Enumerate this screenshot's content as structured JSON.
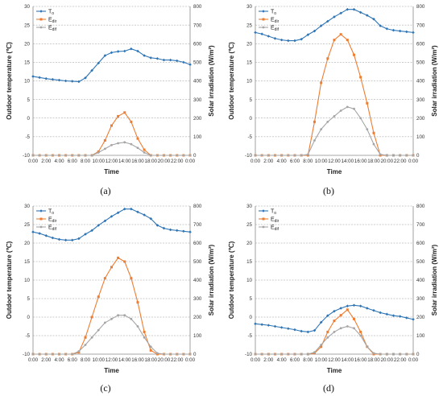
{
  "chart_data": [
    {
      "type": "line",
      "panel_label": "(a)",
      "xlabel": "Time",
      "ylabel_left": "Outdoor temperature (℃)",
      "ylabel_right": "Solar irradiation (W/m²)",
      "ylim_left": [
        -10,
        30
      ],
      "ylim_right": [
        0,
        800
      ],
      "yticks_left": [
        -10,
        -5,
        0,
        5,
        10,
        15,
        20,
        25,
        30
      ],
      "yticks_right": [
        0,
        100,
        200,
        300,
        400,
        500,
        600,
        700,
        800
      ],
      "x_tick_labels": [
        "0:00",
        "2:00",
        "4:00",
        "6:00",
        "8:00",
        "10:00",
        "12:00",
        "14:00",
        "16:00",
        "18:00",
        "20:00",
        "22:00",
        "0:00"
      ],
      "grid": "horizontal dashed",
      "legend_position": "top-left",
      "x_hours": [
        0,
        1,
        2,
        3,
        4,
        5,
        6,
        7,
        8,
        9,
        10,
        11,
        12,
        13,
        14,
        15,
        16,
        17,
        18,
        19,
        20,
        21,
        22,
        23,
        24
      ],
      "series": [
        {
          "name": "To",
          "axis": "left",
          "color": "#2E75B6",
          "marker": "diamond",
          "values": [
            11.2,
            10.9,
            10.6,
            10.4,
            10.2,
            10.0,
            9.9,
            9.8,
            10.8,
            12.8,
            14.8,
            16.8,
            17.6,
            17.9,
            18.0,
            18.6,
            18.0,
            16.8,
            16.2,
            16.0,
            15.6,
            15.6,
            15.4,
            15.0,
            14.4
          ]
        },
        {
          "name": "Edir",
          "axis": "right",
          "color": "#ED7D31",
          "marker": "square",
          "values": [
            0,
            0,
            0,
            0,
            0,
            0,
            0,
            0,
            0,
            0,
            20,
            80,
            160,
            210,
            230,
            180,
            90,
            30,
            0,
            0,
            0,
            0,
            0,
            0,
            0
          ]
        },
        {
          "name": "Edif",
          "axis": "right",
          "color": "#A5A5A5",
          "marker": "circle",
          "values": [
            0,
            0,
            0,
            0,
            0,
            0,
            0,
            0,
            0,
            0,
            15,
            35,
            55,
            65,
            70,
            60,
            40,
            15,
            0,
            0,
            0,
            0,
            0,
            0,
            0
          ]
        }
      ]
    },
    {
      "type": "line",
      "panel_label": "(b)",
      "xlabel": "Time",
      "ylabel_left": "Outdoor temperature (℃)",
      "ylabel_right": "Solar irradiation (W/m²)",
      "ylim_left": [
        -10,
        30
      ],
      "ylim_right": [
        0,
        800
      ],
      "yticks_left": [
        -10,
        -5,
        0,
        5,
        10,
        15,
        20,
        25,
        30
      ],
      "yticks_right": [
        0,
        100,
        200,
        300,
        400,
        500,
        600,
        700,
        800
      ],
      "x_tick_labels": [
        "0:00",
        "2:00",
        "4:00",
        "6:00",
        "8:00",
        "10:00",
        "12:00",
        "14:00",
        "16:00",
        "18:00",
        "20:00",
        "22:00",
        "0:00"
      ],
      "grid": "horizontal dashed",
      "legend_position": "top-left",
      "x_hours": [
        0,
        1,
        2,
        3,
        4,
        5,
        6,
        7,
        8,
        9,
        10,
        11,
        12,
        13,
        14,
        15,
        16,
        17,
        18,
        19,
        20,
        21,
        22,
        23,
        24
      ],
      "series": [
        {
          "name": "To",
          "axis": "left",
          "color": "#2E75B6",
          "marker": "diamond",
          "values": [
            23.0,
            22.6,
            22.0,
            21.4,
            21.0,
            20.8,
            20.8,
            21.2,
            22.4,
            23.4,
            24.8,
            26.0,
            27.2,
            28.2,
            29.2,
            29.2,
            28.4,
            27.6,
            26.6,
            24.8,
            24.0,
            23.6,
            23.4,
            23.2,
            23.0
          ]
        },
        {
          "name": "Edir",
          "axis": "right",
          "color": "#ED7D31",
          "marker": "square",
          "values": [
            0,
            0,
            0,
            0,
            0,
            0,
            0,
            0,
            0,
            180,
            390,
            520,
            620,
            650,
            620,
            540,
            420,
            280,
            120,
            0,
            0,
            0,
            0,
            0,
            0
          ]
        },
        {
          "name": "Edif",
          "axis": "right",
          "color": "#A5A5A5",
          "marker": "circle",
          "values": [
            0,
            0,
            0,
            0,
            0,
            0,
            0,
            0,
            5,
            80,
            140,
            180,
            210,
            240,
            260,
            250,
            200,
            140,
            60,
            5,
            0,
            0,
            0,
            0,
            0
          ]
        }
      ]
    },
    {
      "type": "line",
      "panel_label": "(c)",
      "xlabel": "Time",
      "ylabel_left": "Outdoor temperature (℃)",
      "ylabel_right": "Solar irradiation (W/m²)",
      "ylim_left": [
        -10,
        30
      ],
      "ylim_right": [
        0,
        800
      ],
      "yticks_left": [
        -10,
        -5,
        0,
        5,
        10,
        15,
        20,
        25,
        30
      ],
      "yticks_right": [
        0,
        100,
        200,
        300,
        400,
        500,
        600,
        700,
        800
      ],
      "x_tick_labels": [
        "0:00",
        "2:00",
        "4:00",
        "6:00",
        "8:00",
        "10:00",
        "12:00",
        "14:00",
        "16:00",
        "18:00",
        "20:00",
        "22:00",
        "0:00"
      ],
      "grid": "horizontal dashed",
      "legend_position": "top-left",
      "x_hours": [
        0,
        1,
        2,
        3,
        4,
        5,
        6,
        7,
        8,
        9,
        10,
        11,
        12,
        13,
        14,
        15,
        16,
        17,
        18,
        19,
        20,
        21,
        22,
        23,
        24
      ],
      "series": [
        {
          "name": "To",
          "axis": "left",
          "color": "#2E75B6",
          "marker": "diamond",
          "values": [
            23.0,
            22.6,
            22.0,
            21.4,
            21.0,
            20.8,
            20.8,
            21.2,
            22.4,
            23.4,
            24.8,
            26.0,
            27.2,
            28.2,
            29.2,
            29.2,
            28.4,
            27.6,
            26.6,
            24.8,
            24.0,
            23.6,
            23.4,
            23.2,
            23.0
          ]
        },
        {
          "name": "Edir",
          "axis": "right",
          "color": "#ED7D31",
          "marker": "square",
          "values": [
            0,
            0,
            0,
            0,
            0,
            0,
            0,
            10,
            90,
            200,
            310,
            410,
            470,
            520,
            500,
            410,
            280,
            120,
            20,
            0,
            0,
            0,
            0,
            0,
            0
          ]
        },
        {
          "name": "Edif",
          "axis": "right",
          "color": "#A5A5A5",
          "marker": "circle",
          "values": [
            0,
            0,
            0,
            0,
            0,
            0,
            0,
            15,
            50,
            90,
            130,
            170,
            190,
            210,
            210,
            190,
            150,
            90,
            40,
            5,
            0,
            0,
            0,
            0,
            0
          ]
        }
      ]
    },
    {
      "type": "line",
      "panel_label": "(d)",
      "xlabel": "Time",
      "ylabel_left": "Outdoor temperature (℃)",
      "ylabel_right": "Solar irradiation (W/m²)",
      "ylim_left": [
        -10,
        30
      ],
      "ylim_right": [
        0,
        800
      ],
      "yticks_left": [
        -10,
        -5,
        0,
        5,
        10,
        15,
        20,
        25,
        30
      ],
      "yticks_right": [
        0,
        100,
        200,
        300,
        400,
        500,
        600,
        700,
        800
      ],
      "x_tick_labels": [
        "0:00",
        "2:00",
        "4:00",
        "6:00",
        "8:00",
        "10:00",
        "12:00",
        "14:00",
        "16:00",
        "18:00",
        "20:00",
        "22:00",
        "0:00"
      ],
      "grid": "horizontal dashed",
      "legend_position": "top-left",
      "x_hours": [
        0,
        1,
        2,
        3,
        4,
        5,
        6,
        7,
        8,
        9,
        10,
        11,
        12,
        13,
        14,
        15,
        16,
        17,
        18,
        19,
        20,
        21,
        22,
        23,
        24
      ],
      "series": [
        {
          "name": "To",
          "axis": "left",
          "color": "#2E75B6",
          "marker": "diamond",
          "values": [
            -1.8,
            -2.0,
            -2.2,
            -2.5,
            -2.8,
            -3.1,
            -3.4,
            -3.8,
            -4.0,
            -3.6,
            -1.4,
            0.4,
            1.6,
            2.4,
            3.0,
            3.2,
            3.0,
            2.4,
            1.8,
            1.2,
            0.8,
            0.4,
            0.2,
            -0.2,
            -0.6
          ]
        },
        {
          "name": "Edir",
          "axis": "right",
          "color": "#ED7D31",
          "marker": "square",
          "values": [
            0,
            0,
            0,
            0,
            0,
            0,
            0,
            0,
            0,
            5,
            40,
            120,
            180,
            210,
            240,
            190,
            120,
            40,
            0,
            0,
            0,
            0,
            0,
            0,
            0
          ]
        },
        {
          "name": "Edif",
          "axis": "right",
          "color": "#A5A5A5",
          "marker": "circle",
          "values": [
            0,
            0,
            0,
            0,
            0,
            0,
            0,
            0,
            0,
            10,
            50,
            90,
            120,
            140,
            150,
            140,
            100,
            40,
            5,
            0,
            0,
            0,
            0,
            0,
            0
          ]
        }
      ]
    }
  ]
}
